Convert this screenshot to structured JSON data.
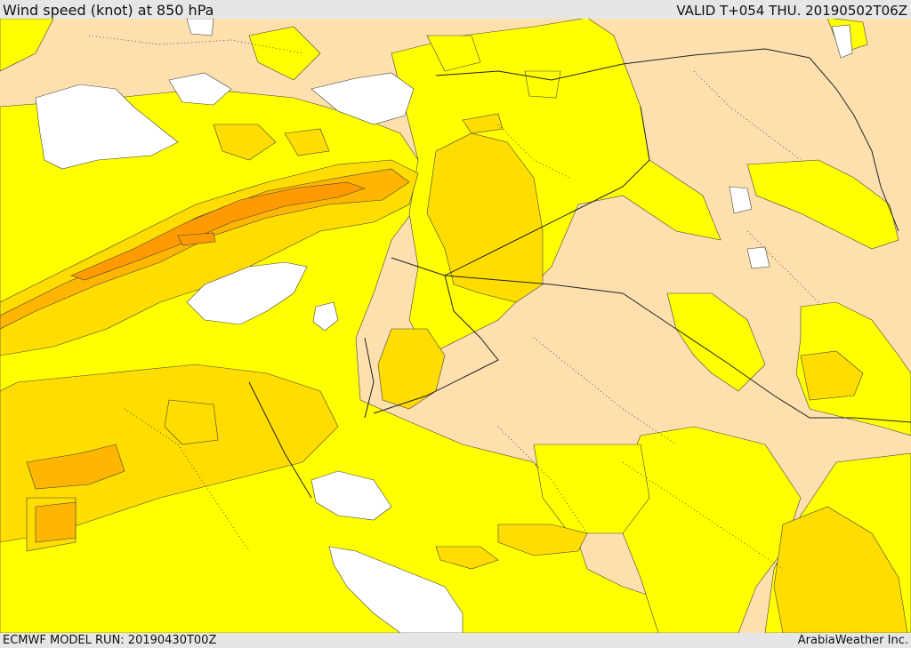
{
  "header": {
    "title": "Wind speed (knot) at 850 hPa",
    "valid_time": "VALID T+054 THU. 20190502T06Z"
  },
  "footer": {
    "model_run": "ECMWF MODEL RUN: 20190430T00Z",
    "credit": "ArabiaWeather Inc."
  },
  "colors": {
    "calm_white": "#ffffff",
    "light_peach": "#fde0ad",
    "yellow": "#ffff00",
    "gold": "#ffdd00",
    "amber": "#ffb600",
    "orange": "#ff9a00",
    "bar": "#e6e6e6"
  }
}
